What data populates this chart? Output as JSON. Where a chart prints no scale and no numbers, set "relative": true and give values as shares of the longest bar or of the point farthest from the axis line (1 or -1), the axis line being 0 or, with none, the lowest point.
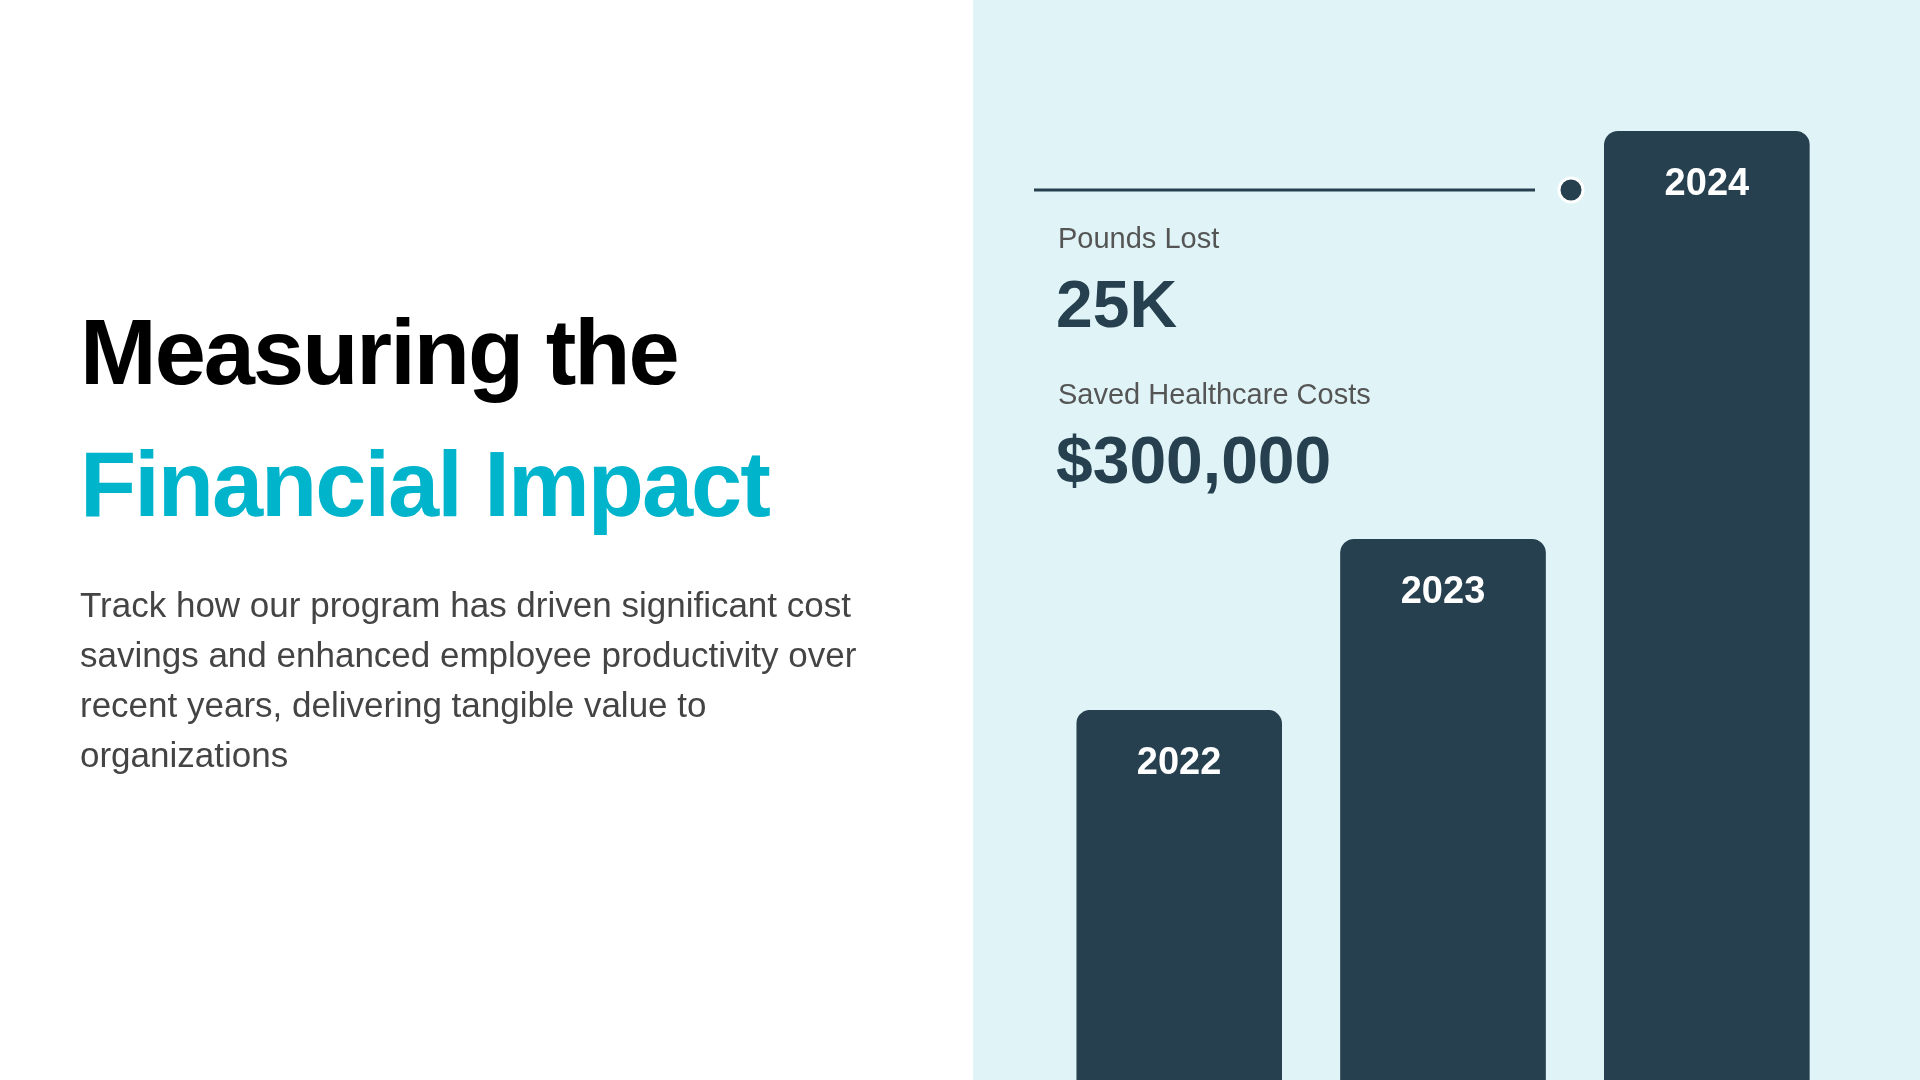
{
  "chart_data": {
    "type": "bar",
    "relative": true,
    "title": "Measuring the",
    "subtitle": "Financial Impact",
    "categories": [
      "2022",
      "2023",
      "2024"
    ],
    "values": [
      0.39,
      0.57,
      1
    ],
    "color": "#26404f",
    "annotations": [
      "Track how our program has driven significant cost savings and enhanced employee productivity over recent years, delivering tangible value to organizations",
      "Pounds Lost",
      "25K",
      "Saved Healthcare Costs",
      "$300,000"
    ]
  }
}
